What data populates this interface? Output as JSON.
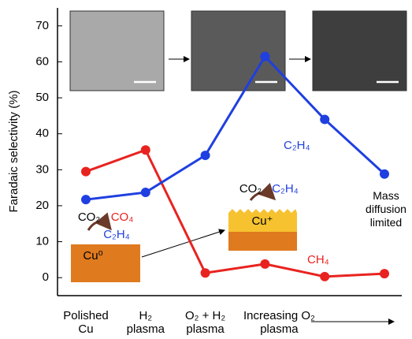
{
  "chart_data": {
    "type": "line",
    "y_label": "Faradaic selectivity (%)",
    "categories": [
      "Polished Cu",
      "H₂ plasma",
      "O₂ + H₂ plasma",
      "Increasing O₂ plasma",
      null,
      null
    ],
    "series": [
      {
        "name": "CH₄",
        "color": "#e8231f",
        "values": [
          29.5,
          35.5,
          1.3,
          3.8,
          0.3,
          1.1
        ]
      },
      {
        "name": "C₂H₄",
        "color": "#1f3fe0",
        "values": [
          21.7,
          23.7,
          34,
          61.5,
          44,
          28.8
        ]
      }
    ],
    "ylim": [
      -5,
      75
    ],
    "yticks": [
      0,
      10,
      20,
      30,
      40,
      50,
      60,
      70
    ],
    "annotations": [
      {
        "text": "Mass diffusion limited",
        "color": "#000000"
      },
      {
        "text": "CO₂",
        "color": "#000000"
      },
      {
        "text": "CO₄",
        "color": "#e8231f"
      },
      {
        "text": "C₂H₄",
        "color": "#1f3fe0"
      },
      {
        "text": "Cu⁰",
        "color": "#000000"
      },
      {
        "text": "CO₂",
        "color": "#000000"
      },
      {
        "text": "C₂H₄",
        "color": "#1f3fe0"
      },
      {
        "text": "Cu⁺",
        "color": "#000000"
      }
    ]
  }
}
